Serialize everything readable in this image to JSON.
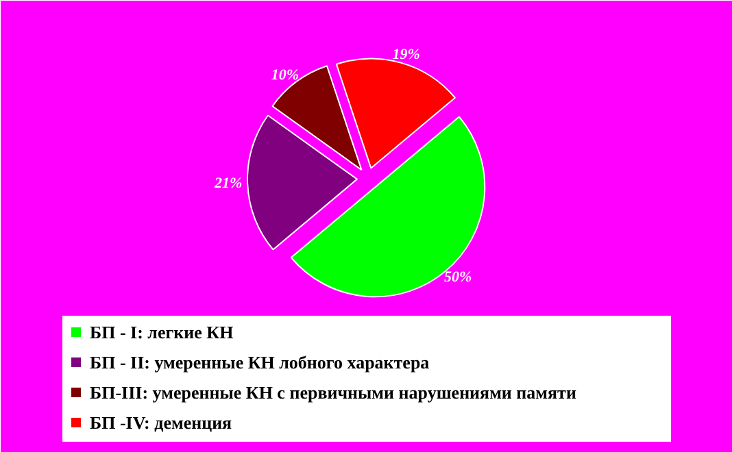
{
  "chart_data": {
    "type": "pie",
    "categories": [
      "БП - I: легкие КН",
      "БП - II: умеренные КН лобного характера",
      "БП-III: умеренные КН с первичными нарушениями памяти",
      "БП -IV: деменция"
    ],
    "values": [
      50,
      21,
      10,
      19
    ],
    "colors": [
      "#00ff00",
      "#800080",
      "#800000",
      "#ff0000"
    ],
    "value_labels": [
      "50%",
      "21%",
      "10%",
      "19%"
    ],
    "legend": "bottom"
  }
}
